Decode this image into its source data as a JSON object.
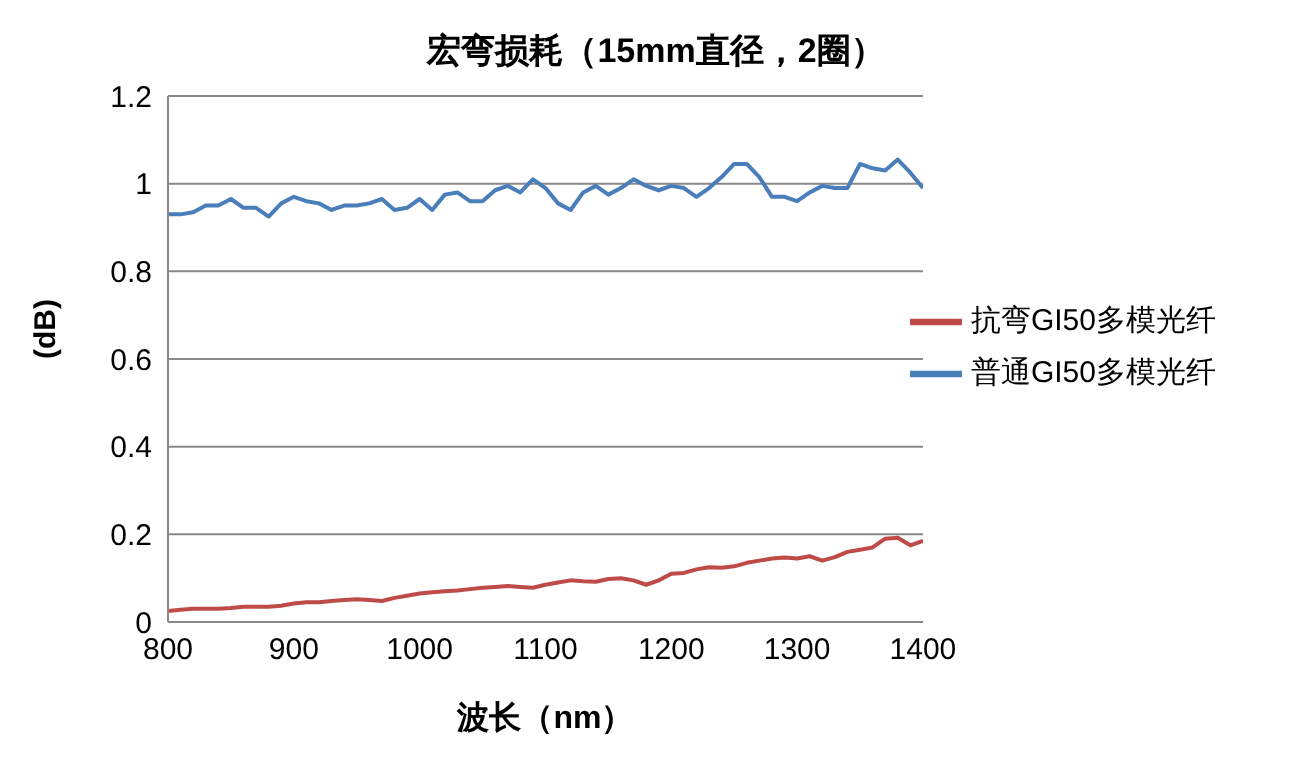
{
  "chart_data": {
    "type": "line",
    "title": "宏弯损耗（15mm直径，2圈）",
    "xlabel": "波长（nm）",
    "ylabel": "(dB)",
    "x": [
      800,
      810,
      820,
      830,
      840,
      850,
      860,
      870,
      880,
      890,
      900,
      910,
      920,
      930,
      940,
      950,
      960,
      970,
      980,
      990,
      1000,
      1010,
      1020,
      1030,
      1040,
      1050,
      1060,
      1070,
      1080,
      1090,
      1100,
      1110,
      1120,
      1130,
      1140,
      1150,
      1160,
      1170,
      1180,
      1190,
      1200,
      1210,
      1220,
      1230,
      1240,
      1250,
      1260,
      1270,
      1280,
      1290,
      1300,
      1310,
      1320,
      1330,
      1340,
      1350,
      1360,
      1370,
      1380,
      1390,
      1400
    ],
    "series": [
      {
        "name": "普通GI50多模光纤",
        "color": "#4a7ebb",
        "values": [
          0.93,
          0.93,
          0.935,
          0.95,
          0.95,
          0.965,
          0.945,
          0.945,
          0.925,
          0.955,
          0.97,
          0.96,
          0.955,
          0.94,
          0.95,
          0.95,
          0.955,
          0.965,
          0.94,
          0.945,
          0.965,
          0.94,
          0.975,
          0.98,
          0.96,
          0.96,
          0.985,
          0.995,
          0.98,
          1.01,
          0.99,
          0.955,
          0.94,
          0.98,
          0.995,
          0.975,
          0.99,
          1.01,
          0.995,
          0.985,
          0.995,
          0.99,
          0.97,
          0.99,
          1.015,
          1.045,
          1.045,
          1.015,
          0.97,
          0.97,
          0.96,
          0.98,
          0.995,
          0.99,
          0.99,
          1.045,
          1.035,
          1.03,
          1.055,
          1.025,
          0.99
        ]
      },
      {
        "name": "抗弯GI50多模光纤",
        "color": "#be4b48",
        "values": [
          0.025,
          0.028,
          0.03,
          0.03,
          0.03,
          0.032,
          0.035,
          0.035,
          0.035,
          0.037,
          0.042,
          0.045,
          0.045,
          0.048,
          0.05,
          0.052,
          0.05,
          0.048,
          0.055,
          0.06,
          0.065,
          0.068,
          0.07,
          0.072,
          0.075,
          0.078,
          0.08,
          0.082,
          0.08,
          0.078,
          0.085,
          0.09,
          0.095,
          0.093,
          0.092,
          0.098,
          0.1,
          0.095,
          0.085,
          0.095,
          0.11,
          0.112,
          0.12,
          0.125,
          0.124,
          0.127,
          0.135,
          0.14,
          0.145,
          0.147,
          0.145,
          0.15,
          0.14,
          0.148,
          0.16,
          0.165,
          0.17,
          0.19,
          0.192,
          0.175,
          0.185
        ]
      }
    ],
    "xlim": [
      800,
      1400
    ],
    "xticks": [
      800,
      900,
      1000,
      1100,
      1200,
      1300,
      1400
    ],
    "ylim": [
      0,
      1.2
    ],
    "yticks": [
      0,
      0.2,
      0.4,
      0.6,
      0.8,
      1,
      1.2
    ],
    "grid": "y",
    "legend": "right",
    "marker": "none",
    "line_style": "solid"
  }
}
